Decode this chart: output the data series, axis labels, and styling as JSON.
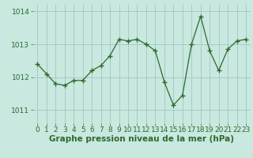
{
  "x": [
    0,
    1,
    2,
    3,
    4,
    5,
    6,
    7,
    8,
    9,
    10,
    11,
    12,
    13,
    14,
    15,
    16,
    17,
    18,
    19,
    20,
    21,
    22,
    23
  ],
  "y": [
    1012.4,
    1012.1,
    1011.8,
    1011.75,
    1011.9,
    1011.9,
    1012.2,
    1012.35,
    1012.65,
    1013.15,
    1013.1,
    1013.15,
    1013.0,
    1012.8,
    1011.85,
    1011.15,
    1011.45,
    1013.0,
    1013.85,
    1012.8,
    1012.2,
    1012.85,
    1013.1,
    1013.15
  ],
  "line_color": "#2d6a2d",
  "marker": "+",
  "bg_color": "#c8e8e0",
  "grid_color": "#a0c8c0",
  "xlabel": "Graphe pression niveau de la mer (hPa)",
  "xlabel_fontsize": 7.5,
  "tick_fontsize": 6.5,
  "yticks": [
    1011,
    1012,
    1013,
    1014
  ],
  "ylim": [
    1010.6,
    1014.2
  ],
  "xlim": [
    -0.5,
    23.5
  ]
}
